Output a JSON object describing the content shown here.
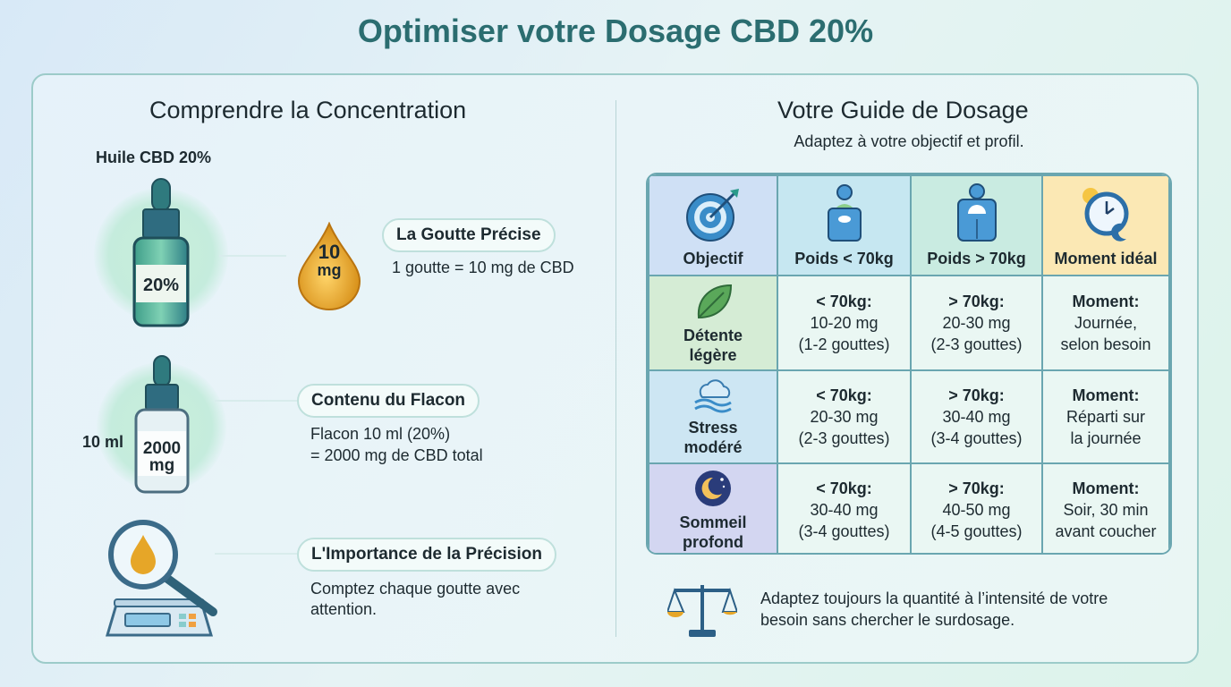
{
  "title": "Optimiser votre Dosage CBD 20%",
  "left": {
    "heading": "Comprendre la Concentration",
    "bottle_label": "Huile CBD 20%",
    "bottle_tag": "20%",
    "drop_value": "10",
    "drop_unit": "mg",
    "items": [
      {
        "title": "La Goutte Précise",
        "lines": [
          "1 goutte = 10 mg de CBD"
        ]
      },
      {
        "title": "Contenu du Flacon",
        "lines": [
          "Flacon 10 ml (20%)",
          "= 2000 mg de CBD total"
        ]
      },
      {
        "title": "L'Importance de la Précision",
        "lines": [
          "Comptez chaque goutte avec",
          "attention."
        ]
      }
    ],
    "flask_volume": "10 ml",
    "flask_tag_value": "2000",
    "flask_tag_unit": "mg"
  },
  "right": {
    "heading": "Votre Guide de Dosage",
    "subtitle": "Adaptez à votre objectif et profil.",
    "table": {
      "headers": [
        {
          "label": "Objectif",
          "icon": "target-icon",
          "color": "#cfe0f5"
        },
        {
          "label": "Poids < 70kg",
          "icon": "light-scale-person-icon",
          "color": "#c6e7f1"
        },
        {
          "label": "Poids > 70kg",
          "icon": "heavy-scale-person-icon",
          "color": "#c9ebe1"
        },
        {
          "label": "Moment idéal",
          "icon": "clock-sun-moon-icon",
          "color": "#fbe8b4"
        }
      ],
      "rows": [
        {
          "objective": [
            "Détente",
            "légère"
          ],
          "icon": "leaf-icon",
          "color": "#d5ecd5",
          "low": {
            "head": "< 70kg:",
            "dose": "10-20 mg",
            "drops": "(1-2 gouttes)"
          },
          "high": {
            "head": "> 70kg:",
            "dose": "20-30 mg",
            "drops": "(2-3 gouttes)"
          },
          "moment": {
            "head": "Moment:",
            "l1": "Journée,",
            "l2": "selon besoin"
          }
        },
        {
          "objective": [
            "Stress",
            "modéré"
          ],
          "icon": "cloud-waves-icon",
          "color": "#cde6f3",
          "low": {
            "head": "< 70kg:",
            "dose": "20-30 mg",
            "drops": "(2-3 gouttes)"
          },
          "high": {
            "head": "> 70kg:",
            "dose": "30-40 mg",
            "drops": "(3-4 gouttes)"
          },
          "moment": {
            "head": "Moment:",
            "l1": "Réparti sur",
            "l2": "la journée"
          }
        },
        {
          "objective": [
            "Sommeil",
            "profond"
          ],
          "icon": "moon-stars-icon",
          "color": "#d3d6f1",
          "low": {
            "head": "< 70kg:",
            "dose": "30-40 mg",
            "drops": "(3-4 gouttes)"
          },
          "high": {
            "head": "> 70kg:",
            "dose": "40-50 mg",
            "drops": "(4-5 gouttes)"
          },
          "moment": {
            "head": "Moment:",
            "l1": "Soir, 30 min",
            "l2": "avant coucher"
          }
        }
      ]
    },
    "footer": [
      "Adaptez toujours la quantité à l’intensité de votre",
      "besoin sans chercher le surdosage."
    ]
  }
}
